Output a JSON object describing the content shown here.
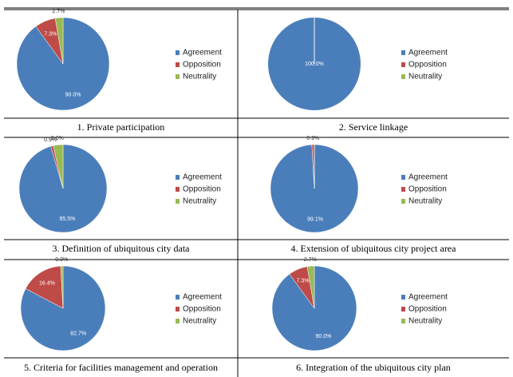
{
  "chart_data": [
    {
      "type": "pie",
      "title": "1.  Private  participation",
      "categories": [
        "Agreement",
        "Opposition",
        "Neutrality"
      ],
      "colors": [
        "#4a7ebb",
        "#be4b48",
        "#98b954"
      ],
      "values": [
        90.0,
        7.3,
        2.7
      ],
      "value_labels": [
        "90.0%",
        "7.3%",
        "2.7%"
      ]
    },
    {
      "type": "pie",
      "title": "2.  Service  linkage",
      "categories": [
        "Agreement",
        "Opposition",
        "Neutrality"
      ],
      "colors": [
        "#4a7ebb",
        "#be4b48",
        "#98b954"
      ],
      "values": [
        100.0,
        0,
        0
      ],
      "value_labels": [
        "100.0%",
        null,
        null
      ]
    },
    {
      "type": "pie",
      "title": "3.  Definition  of  ubiquitous  city  data",
      "categories": [
        "Agreement",
        "Opposition",
        "Neutrality"
      ],
      "colors": [
        "#4a7ebb",
        "#be4b48",
        "#98b954"
      ],
      "values": [
        95.5,
        0.9,
        3.6
      ],
      "value_labels": [
        "95.5%",
        "0.9%",
        "3.6%"
      ]
    },
    {
      "type": "pie",
      "title": "4.  Extension  of  ubiquitous  city  project  area",
      "categories": [
        "Agreement",
        "Opposition",
        "Neutrality"
      ],
      "colors": [
        "#4a7ebb",
        "#be4b48",
        "#98b954"
      ],
      "values": [
        99.1,
        0.9,
        0
      ],
      "value_labels": [
        "99.1%",
        "0.9%",
        null
      ]
    },
    {
      "type": "pie",
      "title": "5.  Criteria  for  facilities  management  and  operation",
      "categories": [
        "Agreement",
        "Opposition",
        "Neutrality"
      ],
      "colors": [
        "#4a7ebb",
        "#be4b48",
        "#98b954"
      ],
      "values": [
        82.7,
        16.4,
        0.9
      ],
      "value_labels": [
        "82.7%",
        "16.4%",
        "0.9%"
      ]
    },
    {
      "type": "pie",
      "title": "6.  Integration  of  the  ubiquitous  city  plan",
      "categories": [
        "Agreement",
        "Opposition",
        "Neutrality"
      ],
      "colors": [
        "#4a7ebb",
        "#be4b48",
        "#98b954"
      ],
      "values": [
        90.0,
        7.3,
        2.7
      ],
      "value_labels": [
        "90.0%",
        "7.3%",
        "2.7%"
      ]
    }
  ]
}
